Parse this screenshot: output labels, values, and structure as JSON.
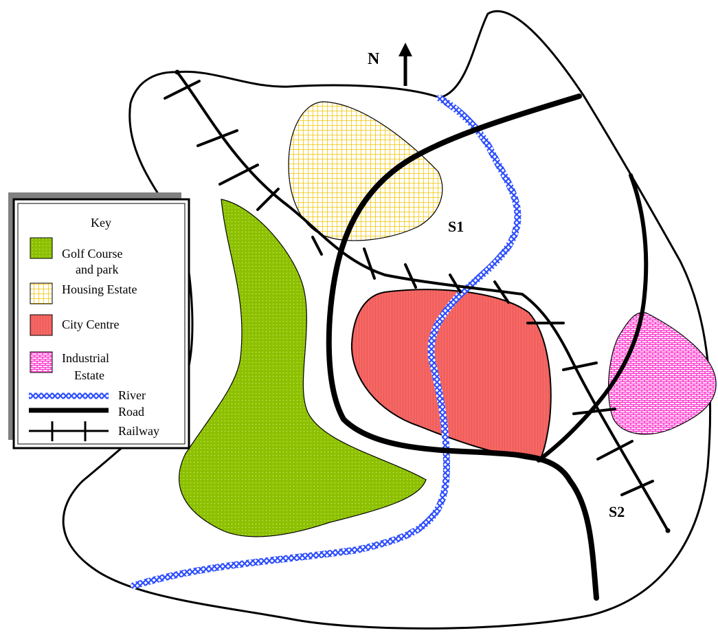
{
  "map": {
    "north_label": "N",
    "site_labels": [
      "S1",
      "S2"
    ],
    "colors": {
      "golf": "#8cc000",
      "housing": "#f2c400",
      "city": "#f25f5c",
      "industrial": "#ff33cc",
      "river": "#2b4cff",
      "road": "#000000",
      "rail": "#000000",
      "key_shadow": "#808080"
    }
  },
  "key": {
    "title": "Key",
    "items": [
      {
        "line1": "Golf Course",
        "line2": "and park",
        "symbol": "golf-swatch"
      },
      {
        "line1": "Housing Estate",
        "line2": "",
        "symbol": "housing-swatch"
      },
      {
        "line1": "City Centre",
        "line2": "",
        "symbol": "city-swatch"
      },
      {
        "line1": "Industrial",
        "line2": "Estate",
        "symbol": "industrial-swatch"
      },
      {
        "line1": "River",
        "line2": "",
        "symbol": "river-line"
      },
      {
        "line1": "Road",
        "line2": "",
        "symbol": "road-line"
      },
      {
        "line1": "Railway",
        "line2": "",
        "symbol": "railway-line"
      }
    ]
  }
}
